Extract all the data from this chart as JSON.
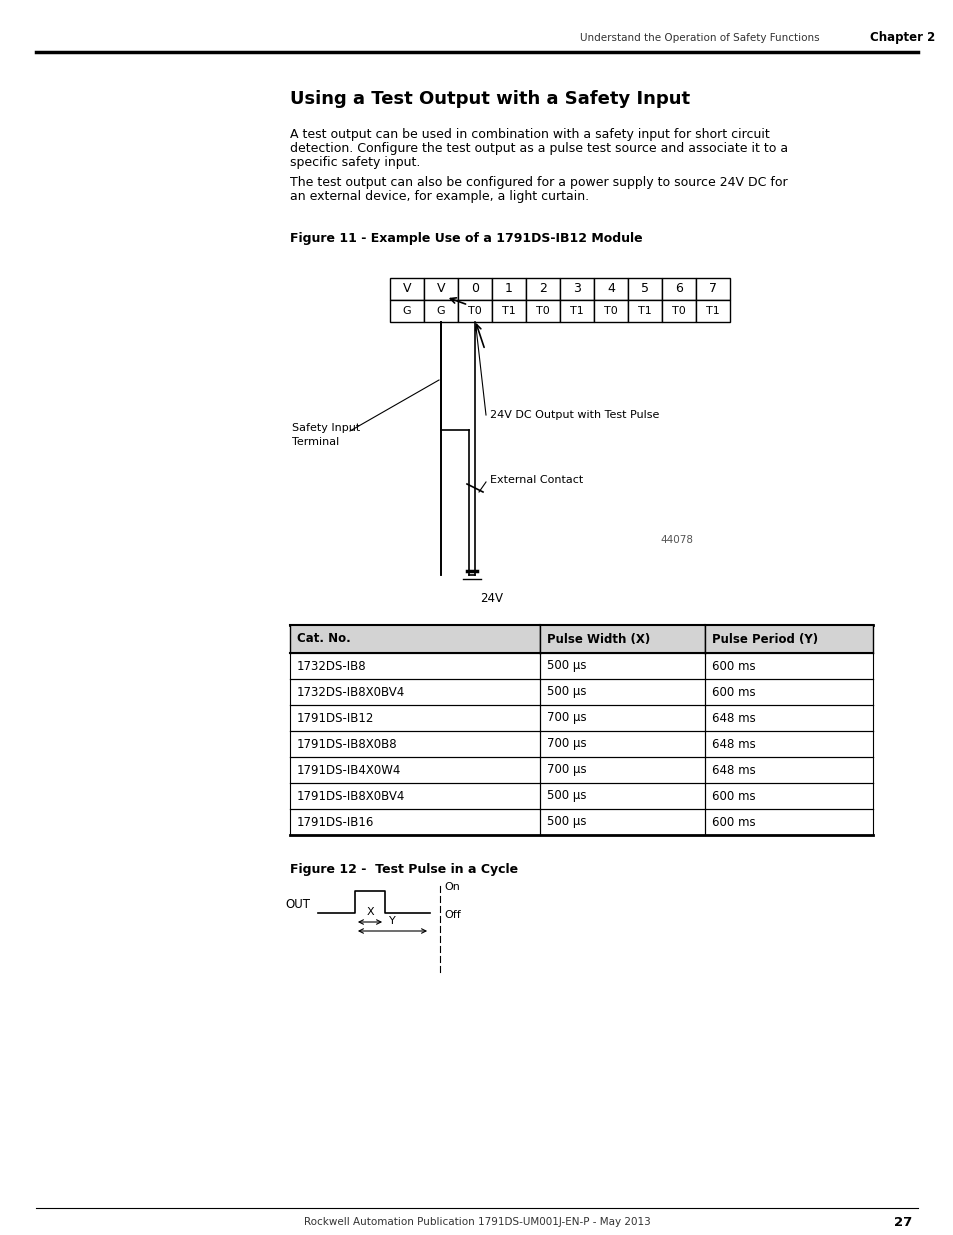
{
  "page_header_text": "Understand the Operation of Safety Functions",
  "page_header_chapter": "Chapter 2",
  "page_number": "27",
  "footer_text": "Rockwell Automation Publication 1791DS-UM001J-EN-P - May 2013",
  "title": "Using a Test Output with a Safety Input",
  "para1_lines": [
    "A test output can be used in combination with a safety input for short circuit",
    "detection. Configure the test output as a pulse test source and associate it to a",
    "specific safety input."
  ],
  "para2_lines": [
    "The test output can also be configured for a power supply to source 24V DC for",
    "an external device, for example, a light curtain."
  ],
  "fig1_caption": "Figure 11 - Example Use of a 1791DS-IB12 Module",
  "fig2_caption": "Figure 12 -  Test Pulse in a Cycle",
  "diagram_note": "44078",
  "label_safety": "Safety Input\nTerminal",
  "label_24v_out": "24V DC Output with Test Pulse",
  "label_ext_contact": "External Contact",
  "label_24v": "24V",
  "table_headers": [
    "Cat. No.",
    "Pulse Width (X)",
    "Pulse Period (Y)"
  ],
  "table_rows": [
    [
      "1732DS-IB8",
      "500 μs",
      "600 ms"
    ],
    [
      "1732DS-IB8X0BV4",
      "500 μs",
      "600 ms"
    ],
    [
      "1791DS-IB12",
      "700 μs",
      "648 ms"
    ],
    [
      "1791DS-IB8X0B8",
      "700 μs",
      "648 ms"
    ],
    [
      "1791DS-IB4X0W4",
      "700 μs",
      "648 ms"
    ],
    [
      "1791DS-IB8X0BV4",
      "500 μs",
      "600 ms"
    ],
    [
      "1791DS-IB16",
      "500 μs",
      "600 ms"
    ]
  ],
  "top_row_labels": [
    "V",
    "V",
    "0",
    "1",
    "2",
    "3",
    "4",
    "5",
    "6",
    "7"
  ],
  "bottom_row_labels": [
    "G",
    "G",
    "T0",
    "T1",
    "T0",
    "T1",
    "T0",
    "T1",
    "T0",
    "T1"
  ],
  "bg_color": "#ffffff",
  "text_color": "#000000"
}
